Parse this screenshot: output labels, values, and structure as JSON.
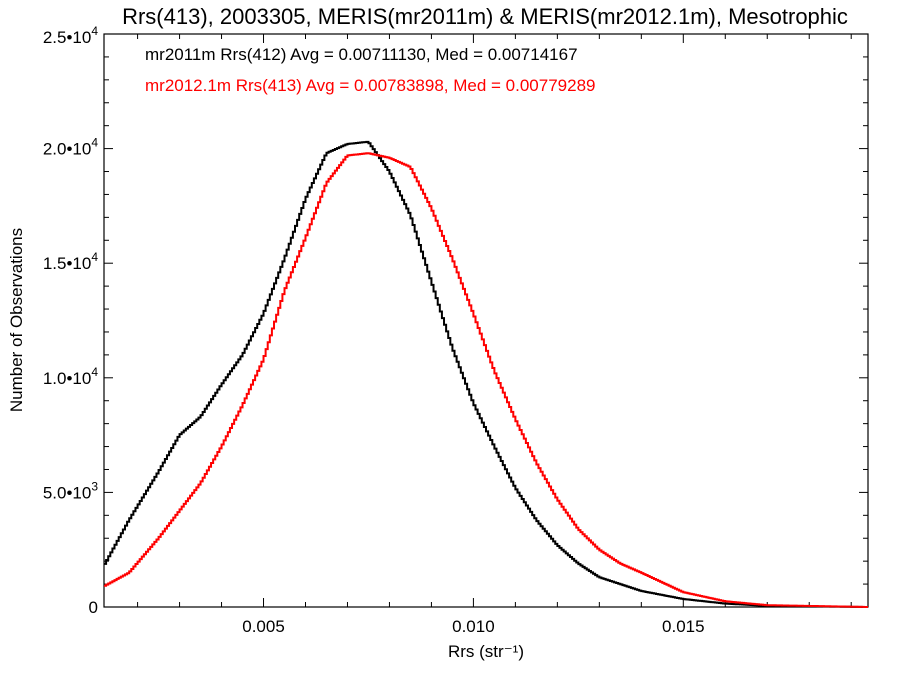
{
  "chart_data": {
    "type": "line",
    "title": "Rrs(413), 2003305, MERIS(mr2011m) & MERIS(mr2012.1m), Mesotrophic",
    "xlabel": "Rrs (str⁻¹)",
    "ylabel": "Number of Observations",
    "xlim": [
      0.0012,
      0.0194
    ],
    "ylim": [
      0,
      25000
    ],
    "x_ticks": [
      0.005,
      0.01,
      0.015
    ],
    "x_tick_labels": [
      "0.005",
      "0.010",
      "0.015"
    ],
    "y_ticks": [
      0,
      5000,
      10000,
      15000,
      20000,
      25000
    ],
    "y_tick_labels": [
      {
        "mantissa": "0",
        "exponent": ""
      },
      {
        "mantissa": "5.0•10",
        "exponent": "3"
      },
      {
        "mantissa": "1.0•10",
        "exponent": "4"
      },
      {
        "mantissa": "1.5•10",
        "exponent": "4"
      },
      {
        "mantissa": "2.0•10",
        "exponent": "4"
      },
      {
        "mantissa": "2.5•10",
        "exponent": "4"
      }
    ],
    "grid": false,
    "legend_position": "top-left",
    "series": [
      {
        "name": "mr2011m Rrs(412) Avg = 0.00711130, Med = 0.00714167",
        "color": "#000000",
        "style": "step",
        "x": [
          0.0012,
          0.0018,
          0.0025,
          0.003,
          0.0035,
          0.004,
          0.0045,
          0.005,
          0.0055,
          0.006,
          0.0065,
          0.007,
          0.0075,
          0.008,
          0.0085,
          0.009,
          0.0095,
          0.01,
          0.0105,
          0.011,
          0.0115,
          0.012,
          0.0125,
          0.013,
          0.0135,
          0.014,
          0.015,
          0.016,
          0.017,
          0.0194
        ],
        "y": [
          1800,
          3800,
          5900,
          7500,
          8300,
          9700,
          11000,
          12800,
          15200,
          17800,
          19800,
          20200,
          20300,
          19000,
          17100,
          14200,
          11300,
          8900,
          7000,
          5200,
          3800,
          2700,
          1900,
          1300,
          1000,
          700,
          350,
          150,
          50,
          0
        ]
      },
      {
        "name": "mr2012.1m Rrs(413) Avg = 0.00783898, Med = 0.00779289",
        "color": "#ff0000",
        "style": "step",
        "x": [
          0.0012,
          0.0018,
          0.0025,
          0.003,
          0.0035,
          0.004,
          0.0045,
          0.005,
          0.0055,
          0.006,
          0.0065,
          0.007,
          0.0075,
          0.008,
          0.0085,
          0.009,
          0.0095,
          0.01,
          0.0105,
          0.011,
          0.0115,
          0.012,
          0.0125,
          0.013,
          0.0135,
          0.014,
          0.015,
          0.016,
          0.017,
          0.0194
        ],
        "y": [
          900,
          1500,
          3000,
          4200,
          5400,
          7000,
          8800,
          10800,
          13800,
          16100,
          18500,
          19700,
          19800,
          19600,
          19200,
          17400,
          15200,
          12800,
          10300,
          8200,
          6300,
          4700,
          3400,
          2500,
          1900,
          1500,
          650,
          250,
          80,
          0
        ]
      }
    ]
  }
}
